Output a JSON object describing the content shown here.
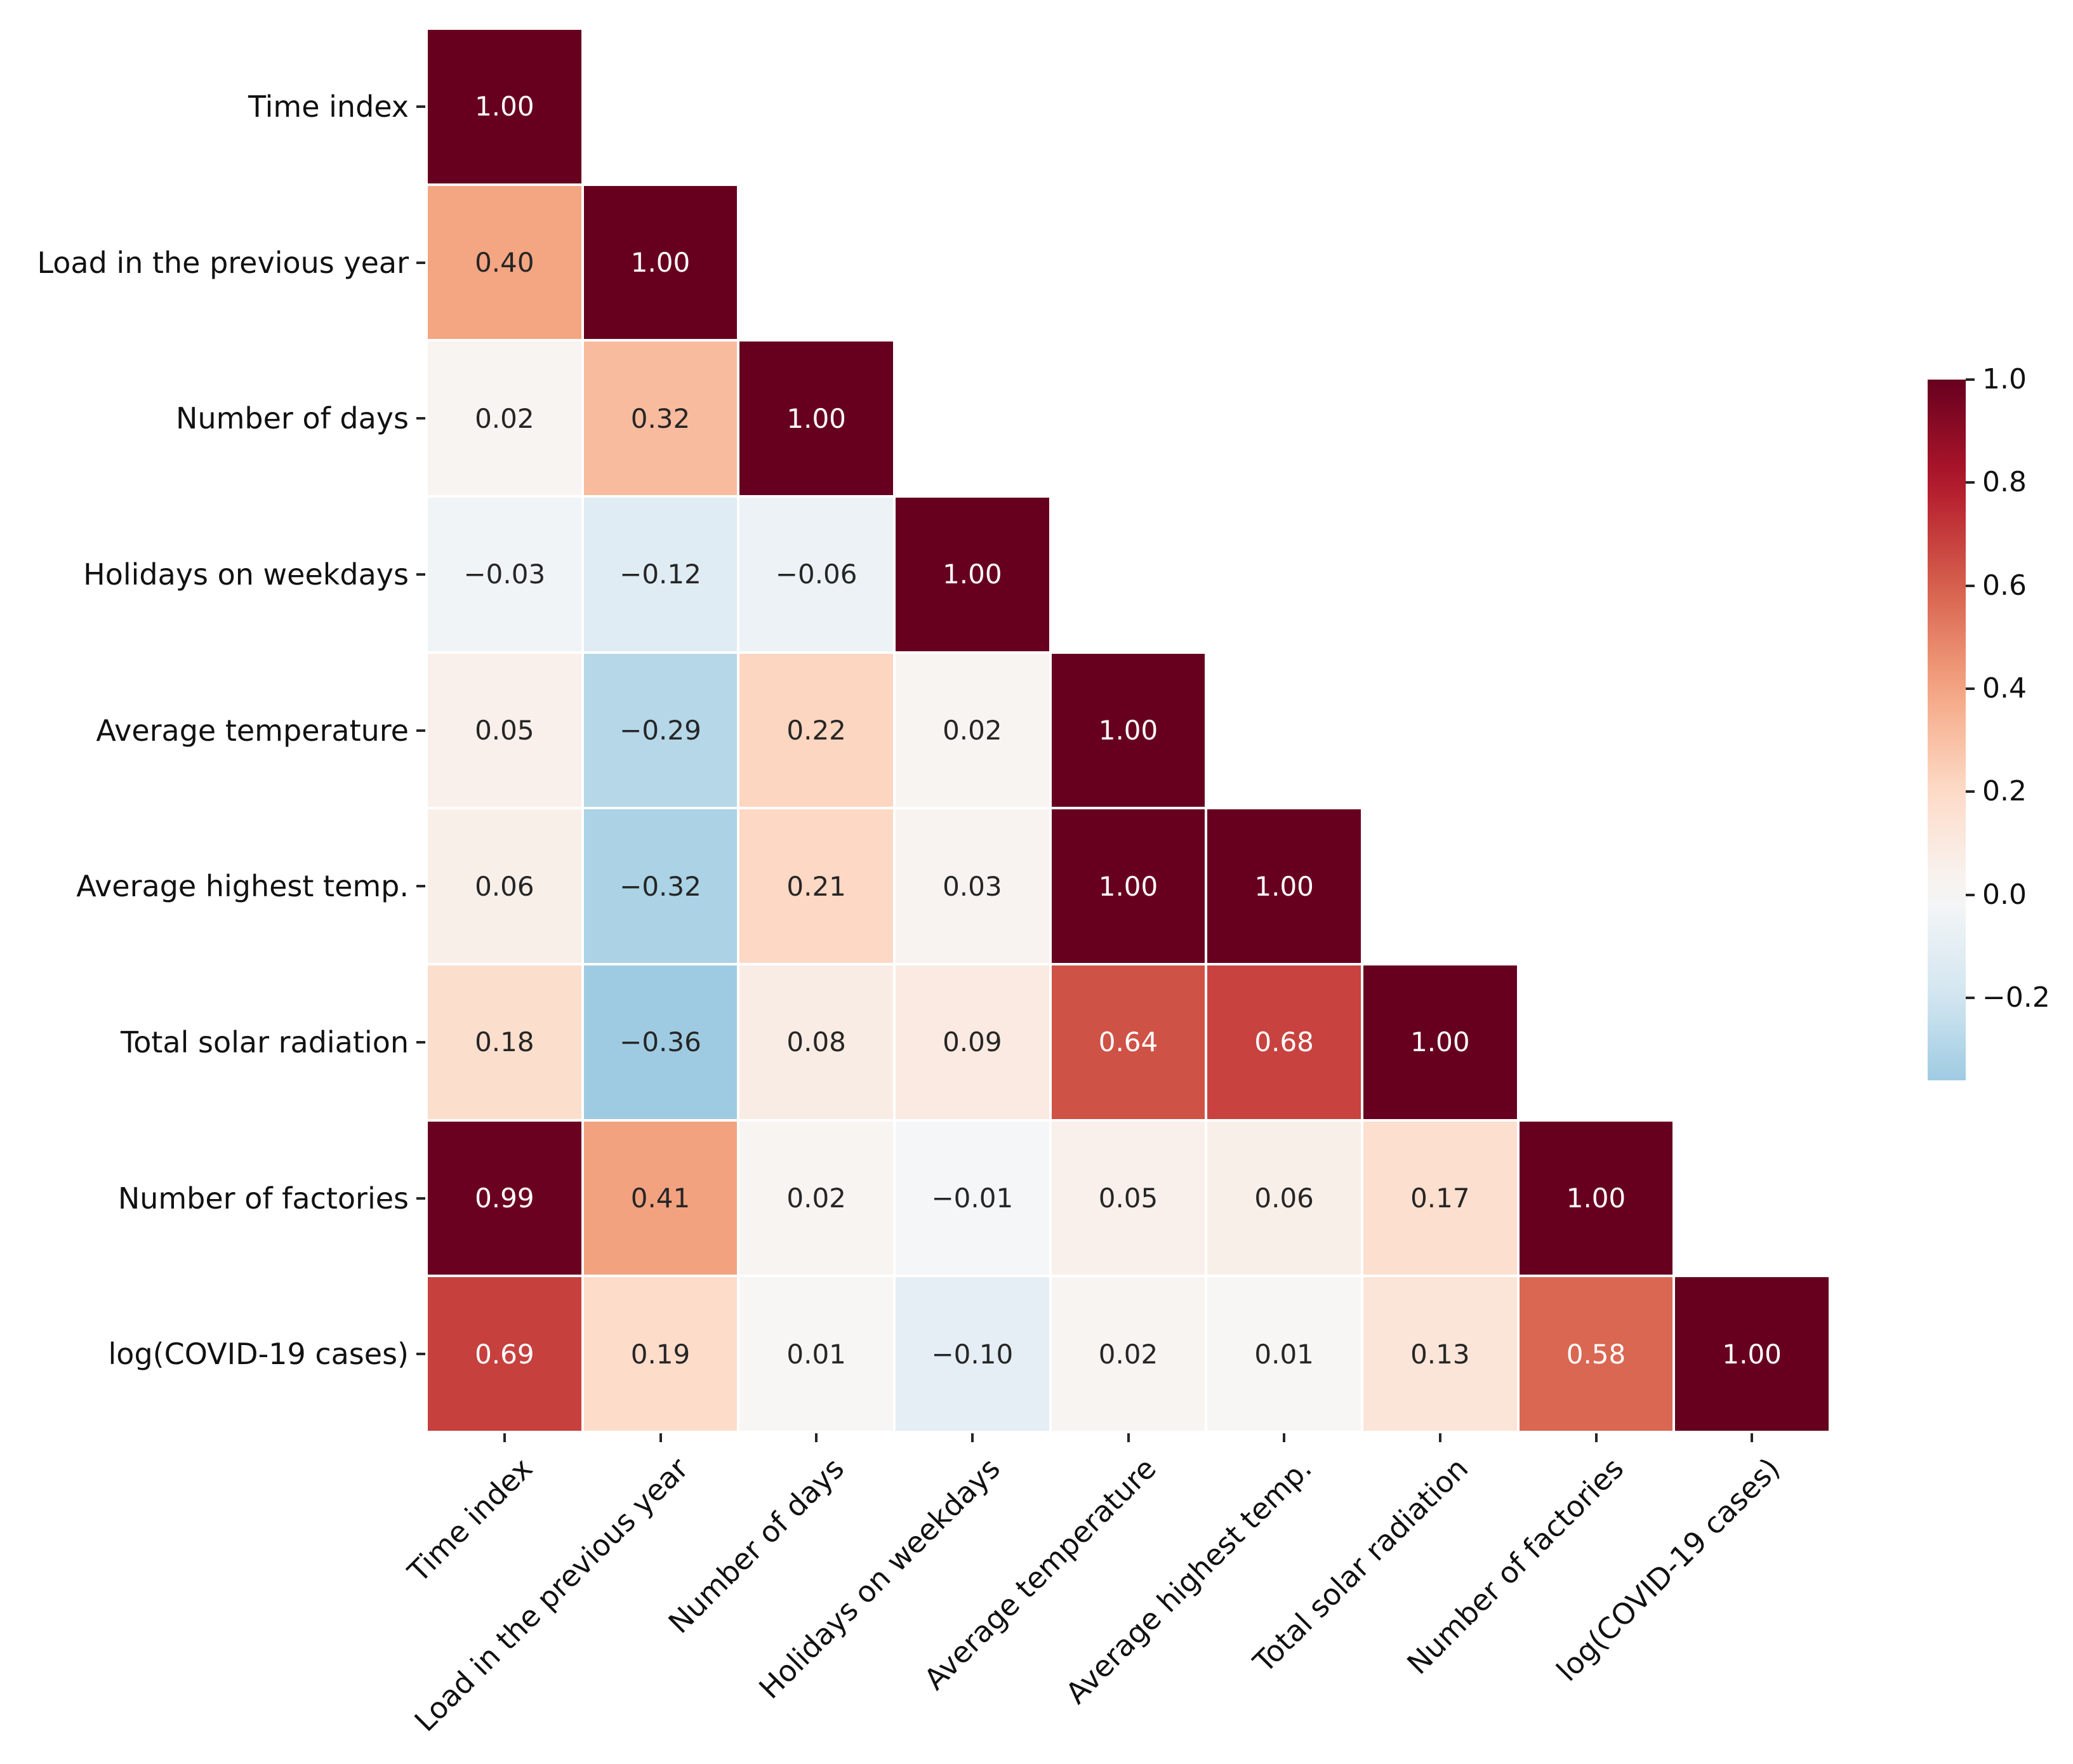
{
  "chart_data": {
    "type": "heatmap",
    "subtype": "lower-triangular correlation matrix",
    "title": "",
    "xlabel": "",
    "ylabel": "",
    "labels": [
      "Time index",
      "Load in the previous year",
      "Number of days",
      "Holidays on weekdays",
      "Average temperature",
      "Average highest temp.",
      "Total solar radiation",
      "Number of factories",
      "log(COVID-19 cases)"
    ],
    "matrix": [
      [
        1.0,
        null,
        null,
        null,
        null,
        null,
        null,
        null,
        null
      ],
      [
        0.4,
        1.0,
        null,
        null,
        null,
        null,
        null,
        null,
        null
      ],
      [
        0.02,
        0.32,
        1.0,
        null,
        null,
        null,
        null,
        null,
        null
      ],
      [
        -0.03,
        -0.12,
        -0.06,
        1.0,
        null,
        null,
        null,
        null,
        null
      ],
      [
        0.05,
        -0.29,
        0.22,
        0.02,
        1.0,
        null,
        null,
        null,
        null
      ],
      [
        0.06,
        -0.32,
        0.21,
        0.03,
        1.0,
        1.0,
        null,
        null,
        null
      ],
      [
        0.18,
        -0.36,
        0.08,
        0.09,
        0.64,
        0.68,
        1.0,
        null,
        null
      ],
      [
        0.99,
        0.41,
        0.02,
        -0.01,
        0.05,
        0.06,
        0.17,
        1.0,
        null
      ],
      [
        0.69,
        0.19,
        0.01,
        -0.1,
        0.02,
        0.01,
        0.13,
        0.58,
        1.0
      ]
    ],
    "color_scale": {
      "colormap": "RdBu_r",
      "center": 0,
      "vmin": -0.36,
      "vmax": 1.0,
      "cmap_lo": 0.32,
      "cmap_hi": 1.0,
      "dark_red": "#67001f",
      "white_mid": "#f7f7f7",
      "light_blue": "#9fcbe2"
    },
    "colorbar_ticks": [
      1.0,
      0.8,
      0.6,
      0.4,
      0.2,
      0.0,
      -0.2
    ],
    "annotation": {
      "decimals": 2,
      "color_dark": "#262626",
      "color_light": "#ffffff"
    },
    "grid_line_color": "#ffffff",
    "legend_position": "right colorbar",
    "grid": false
  }
}
